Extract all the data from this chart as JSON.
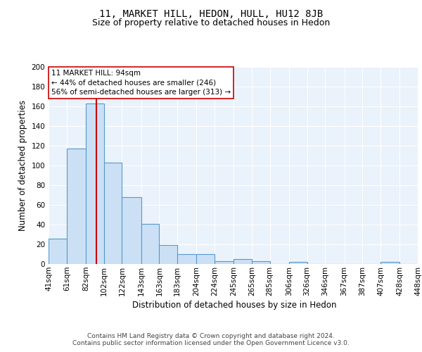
{
  "title": "11, MARKET HILL, HEDON, HULL, HU12 8JB",
  "subtitle": "Size of property relative to detached houses in Hedon",
  "xlabel": "Distribution of detached houses by size in Hedon",
  "ylabel": "Number of detached properties",
  "bin_edges": [
    41,
    61,
    82,
    102,
    122,
    143,
    163,
    183,
    204,
    224,
    245,
    265,
    285,
    306,
    326,
    346,
    367,
    387,
    407,
    428,
    448
  ],
  "bar_heights": [
    26,
    117,
    163,
    103,
    68,
    41,
    19,
    10,
    10,
    3,
    5,
    3,
    0,
    2,
    0,
    0,
    0,
    0,
    2,
    0
  ],
  "bar_color": "#cce0f5",
  "bar_edge_color": "#5599cc",
  "property_size": 94,
  "property_line_color": "#cc0000",
  "annotation_line1": "11 MARKET HILL: 94sqm",
  "annotation_line2": "← 44% of detached houses are smaller (246)",
  "annotation_line3": "56% of semi-detached houses are larger (313) →",
  "ylim": [
    0,
    200
  ],
  "yticks": [
    0,
    20,
    40,
    60,
    80,
    100,
    120,
    140,
    160,
    180,
    200
  ],
  "background_color": "#eaf2fb",
  "footer_text": "Contains HM Land Registry data © Crown copyright and database right 2024.\nContains public sector information licensed under the Open Government Licence v3.0.",
  "title_fontsize": 10,
  "subtitle_fontsize": 9,
  "axis_label_fontsize": 8.5,
  "tick_fontsize": 7.5,
  "footer_fontsize": 6.5
}
